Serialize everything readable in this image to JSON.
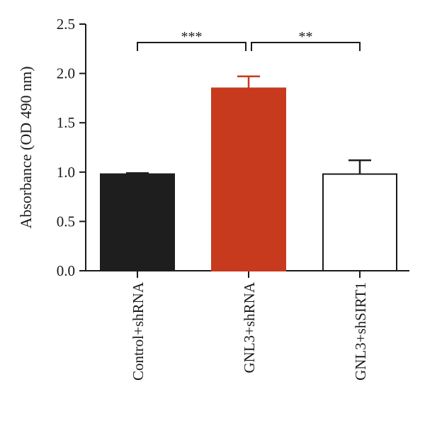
{
  "chart_data": {
    "type": "bar",
    "title": "",
    "xlabel": "",
    "ylabel": "Absorbance (OD 490 nm)",
    "ylim": [
      0,
      2.5
    ],
    "yticks": [
      "0.0",
      "0.5",
      "1.0",
      "1.5",
      "2.0",
      "2.5"
    ],
    "grid": false,
    "categories": [
      "Control+shRNA",
      "GNL3+shRNA",
      "GNL3+shSIRT1"
    ],
    "values": [
      0.98,
      1.85,
      0.98
    ],
    "errors": [
      0.01,
      0.12,
      0.14
    ],
    "colors": [
      "#1e1e1e",
      "#c83a1e",
      "#ffffff"
    ],
    "error_colors": [
      "#1e1e1e",
      "#c83a1e",
      "#1e1e1e"
    ],
    "significance": [
      {
        "from": 0,
        "to": 1,
        "label": "***"
      },
      {
        "from": 1,
        "to": 2,
        "label": "**"
      }
    ]
  }
}
